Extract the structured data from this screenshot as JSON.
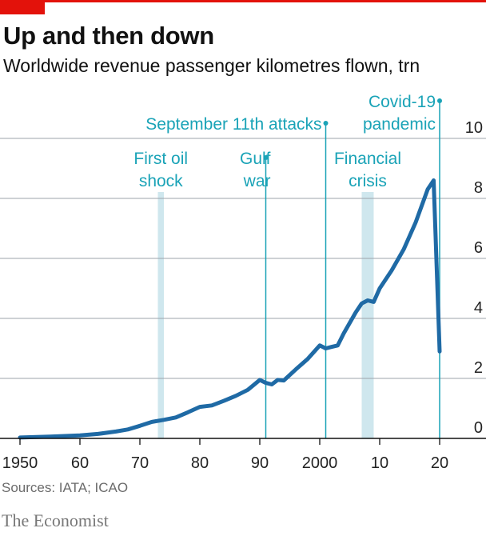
{
  "header": {
    "title": "Up and then down",
    "subtitle": "Worldwide revenue passenger kilometres flown, trn"
  },
  "footer": {
    "source": "Sources: IATA; ICAO",
    "brand": "The Economist"
  },
  "colors": {
    "brand_red": "#e3120b",
    "line": "#1f6aa5",
    "annotation": "#1aa3b7",
    "band": "#cfe7ee",
    "grid": "#9ca3ab",
    "axis": "#111111"
  },
  "chart_data": {
    "type": "line",
    "title": "Up and then down",
    "subtitle": "Worldwide revenue passenger kilometres flown, trn",
    "xlabel": "",
    "ylabel": "",
    "xlim": [
      1950,
      2020
    ],
    "ylim": [
      0,
      10
    ],
    "y_ticks": [
      0,
      2,
      4,
      6,
      8,
      10
    ],
    "y_tick_labels": [
      "0",
      "2",
      "4",
      "6",
      "8",
      "10"
    ],
    "y_axis_side": "right",
    "x_ticks": [
      1950,
      1960,
      1970,
      1980,
      1990,
      2000,
      2010,
      2020
    ],
    "x_tick_labels": [
      "1950",
      "60",
      "70",
      "80",
      "90",
      "2000",
      "10",
      "20"
    ],
    "grid": true,
    "series": [
      {
        "x": [
          1950,
          1955,
          1960,
          1963,
          1966,
          1968,
          1970,
          1972,
          1974,
          1976,
          1978,
          1980,
          1982,
          1984,
          1986,
          1988,
          1990,
          1991,
          1992,
          1993,
          1994,
          1996,
          1998,
          2000,
          2001,
          2002,
          2003,
          2004,
          2006,
          2007,
          2008,
          2009,
          2010,
          2012,
          2014,
          2016,
          2018,
          2019,
          2020
        ],
        "y": [
          0.03,
          0.06,
          0.1,
          0.15,
          0.23,
          0.3,
          0.42,
          0.55,
          0.62,
          0.7,
          0.87,
          1.05,
          1.1,
          1.25,
          1.42,
          1.62,
          1.95,
          1.85,
          1.8,
          1.95,
          1.93,
          2.3,
          2.65,
          3.1,
          3.0,
          3.05,
          3.1,
          3.5,
          4.2,
          4.5,
          4.6,
          4.55,
          5.0,
          5.6,
          6.3,
          7.2,
          8.3,
          8.6,
          2.9
        ]
      }
    ],
    "annotations": [
      {
        "type": "band",
        "x_start": 1973,
        "x_end": 1974,
        "label_lines": [
          "First oil",
          "shock"
        ]
      },
      {
        "type": "line",
        "x": 1991,
        "label_lines": [
          "Gulf",
          "war"
        ]
      },
      {
        "type": "line",
        "x": 2001,
        "label_lines": [
          "September 11th attacks"
        ]
      },
      {
        "type": "band",
        "x_start": 2007,
        "x_end": 2009,
        "label_lines": [
          "Financial",
          "crisis"
        ]
      },
      {
        "type": "line",
        "x": 2020,
        "label_lines": [
          "Covid-19",
          "pandemic"
        ]
      }
    ]
  }
}
